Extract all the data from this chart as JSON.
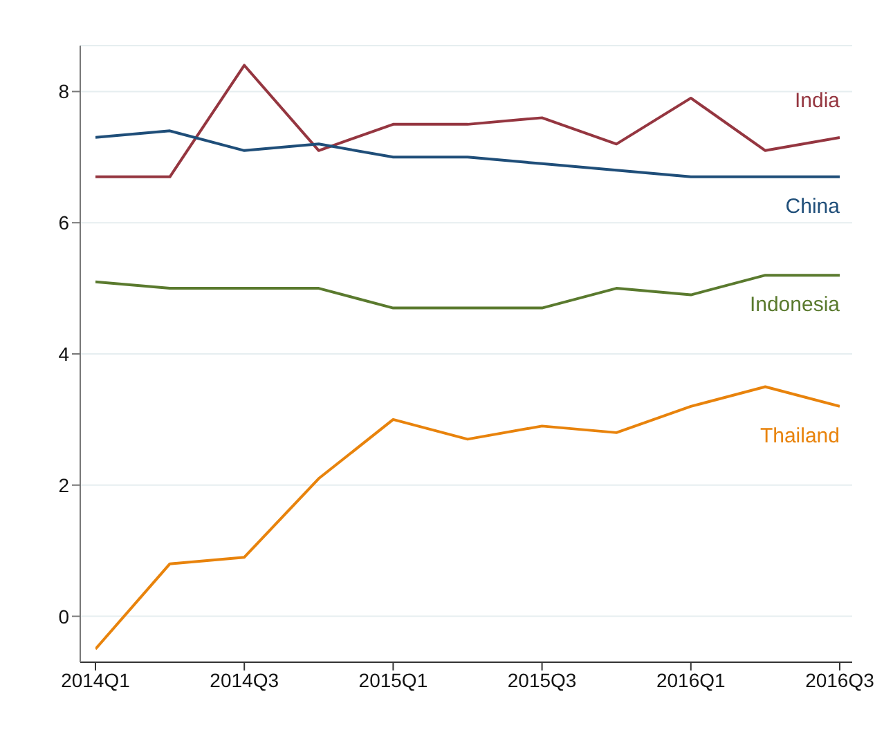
{
  "chart_data": {
    "type": "line",
    "categories": [
      "2014Q1",
      null,
      "2014Q3",
      null,
      "2015Q1",
      null,
      "2015Q3",
      null,
      "2016Q1",
      null,
      "2016Q3"
    ],
    "series": [
      {
        "name": "India",
        "color": "#953640",
        "values": [
          6.7,
          6.7,
          8.4,
          7.1,
          7.5,
          7.5,
          7.6,
          7.2,
          7.9,
          7.1,
          7.3
        ]
      },
      {
        "name": "China",
        "color": "#1f4e79",
        "values": [
          7.3,
          7.4,
          7.1,
          7.2,
          7.0,
          7.0,
          6.9,
          6.8,
          6.7,
          6.7,
          6.7
        ]
      },
      {
        "name": "Indonesia",
        "color": "#5a7a2e",
        "values": [
          5.1,
          5.0,
          5.0,
          5.0,
          4.7,
          4.7,
          4.7,
          5.0,
          4.9,
          5.2,
          5.2
        ]
      },
      {
        "name": "Thailand",
        "color": "#e8830c",
        "values": [
          -0.5,
          0.8,
          0.9,
          2.1,
          3.0,
          2.7,
          2.9,
          2.8,
          3.2,
          3.5,
          3.2
        ]
      }
    ],
    "ylim": [
      -0.7,
      8.7
    ],
    "yticks": [
      0,
      2,
      4,
      6,
      8
    ],
    "grid": "y",
    "legend": false,
    "marker": "none",
    "line_style": "solid"
  }
}
